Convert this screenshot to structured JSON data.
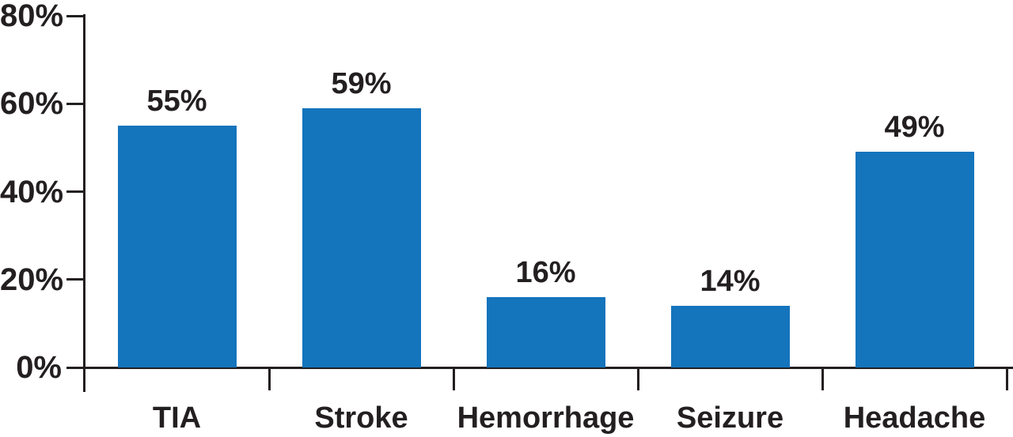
{
  "chart_data": {
    "type": "bar",
    "categories": [
      "TIA",
      "Stroke",
      "Hemorrhage",
      "Seizure",
      "Headache"
    ],
    "values": [
      55,
      59,
      16,
      14,
      49
    ],
    "value_labels": [
      "55%",
      "59%",
      "16%",
      "14%",
      "49%"
    ],
    "ylim": [
      0,
      80
    ],
    "yticks": [
      0,
      20,
      40,
      60,
      80
    ],
    "ytick_labels": [
      "0%",
      "20%",
      "40%",
      "60%",
      "80%"
    ],
    "grid": false,
    "legend_position": "none",
    "bar_color": "#1474BC",
    "axis_color": "#231F20",
    "text_color": "#231F20",
    "background": "#FFFFFF"
  }
}
